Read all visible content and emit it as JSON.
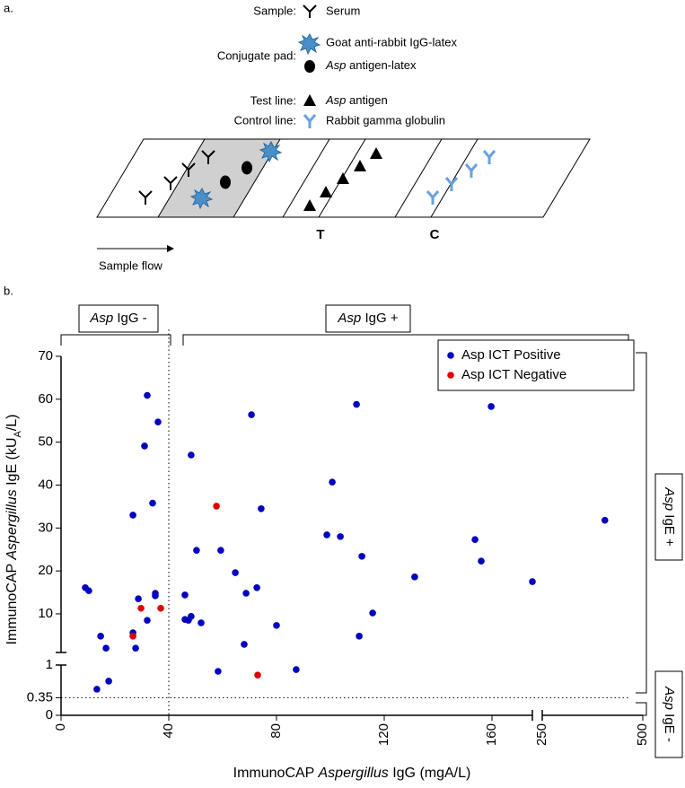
{
  "panel_a": {
    "label": "a.",
    "sample": "Sample:",
    "serum": "Serum",
    "conjugate_pad": "Conjugate pad:",
    "goat": "Goat anti-rabbit IgG-latex",
    "asp_latex": [
      "Asp",
      " antigen-latex"
    ],
    "test_line": "Test line:",
    "asp_antigen": [
      "Asp",
      " antigen"
    ],
    "control_line": "Control line:",
    "rabbit": "Rabbit gamma globulin",
    "t": "T",
    "c": "C",
    "sample_flow": "Sample flow"
  },
  "chart_data": {
    "type": "scatter",
    "panel_label": "b.",
    "xlabel": [
      "ImmunoCAP ",
      "Aspergillus",
      " IgG (mgA/L)"
    ],
    "ylabel": [
      "ImmunoCAP ",
      "Aspergillus",
      " IgE (kU",
      "A",
      "/L)"
    ],
    "xlim": [
      0,
      500
    ],
    "xbreak": [
      175,
      250
    ],
    "ylim": [
      0,
      70
    ],
    "ybreak": [
      1,
      1
    ],
    "xticks": [
      0,
      40,
      80,
      120,
      160,
      250,
      500
    ],
    "yticks": [
      0,
      0.35,
      1,
      10,
      20,
      30,
      40,
      50,
      60,
      70
    ],
    "thresholds": {
      "x": 40,
      "y": 0.35
    },
    "regions": {
      "igg_neg": [
        "Asp",
        " IgG -"
      ],
      "igg_pos": [
        "Asp",
        " IgG +"
      ],
      "ige_pos": [
        "Asp",
        " IgE +"
      ],
      "ige_neg": [
        "Asp",
        " IgE -"
      ]
    },
    "legend": "upper right",
    "series": [
      {
        "name": "Asp ICT Positive",
        "color": "#0000c0",
        "x": [
          9,
          10.3,
          13.3,
          14.7,
          16.7,
          17.7,
          26.7,
          26.7,
          27.7,
          28.7,
          31,
          32,
          32,
          34,
          35,
          35,
          36,
          46,
          46,
          47.3,
          48.3,
          48.3,
          50.3,
          52,
          58.3,
          59.3,
          64.7,
          68,
          68.7,
          70.7,
          72.7,
          74.3,
          80,
          87.3,
          98.7,
          100.7,
          103.7,
          110.7,
          109.7,
          111.7,
          115.7,
          131.3,
          153.7,
          156,
          159.7,
          175,
          405.7
        ],
        "values": [
          16.1,
          15.4,
          0.52,
          4.8,
          2.0,
          0.68,
          33,
          5.6,
          2.0,
          13.5,
          49.1,
          60.9,
          8.5,
          35.8,
          14.8,
          14.2,
          54.7,
          8.7,
          14.4,
          8.5,
          9.4,
          47,
          24.8,
          7.9,
          0.875,
          24.8,
          19.6,
          2.9,
          14.8,
          56.4,
          16.1,
          34.5,
          7.3,
          0.91,
          28.4,
          40.7,
          28,
          4.8,
          58.8,
          23.4,
          10.2,
          18.6,
          27.3,
          22.3,
          58.3,
          17.5,
          31.8
        ]
      },
      {
        "name": "Asp ICT Negative",
        "color": "#e00000",
        "x": [
          26.7,
          29.7,
          37,
          57.7,
          73
        ],
        "values": [
          4.8,
          11.3,
          11.3,
          35.1,
          0.8
        ]
      }
    ]
  }
}
